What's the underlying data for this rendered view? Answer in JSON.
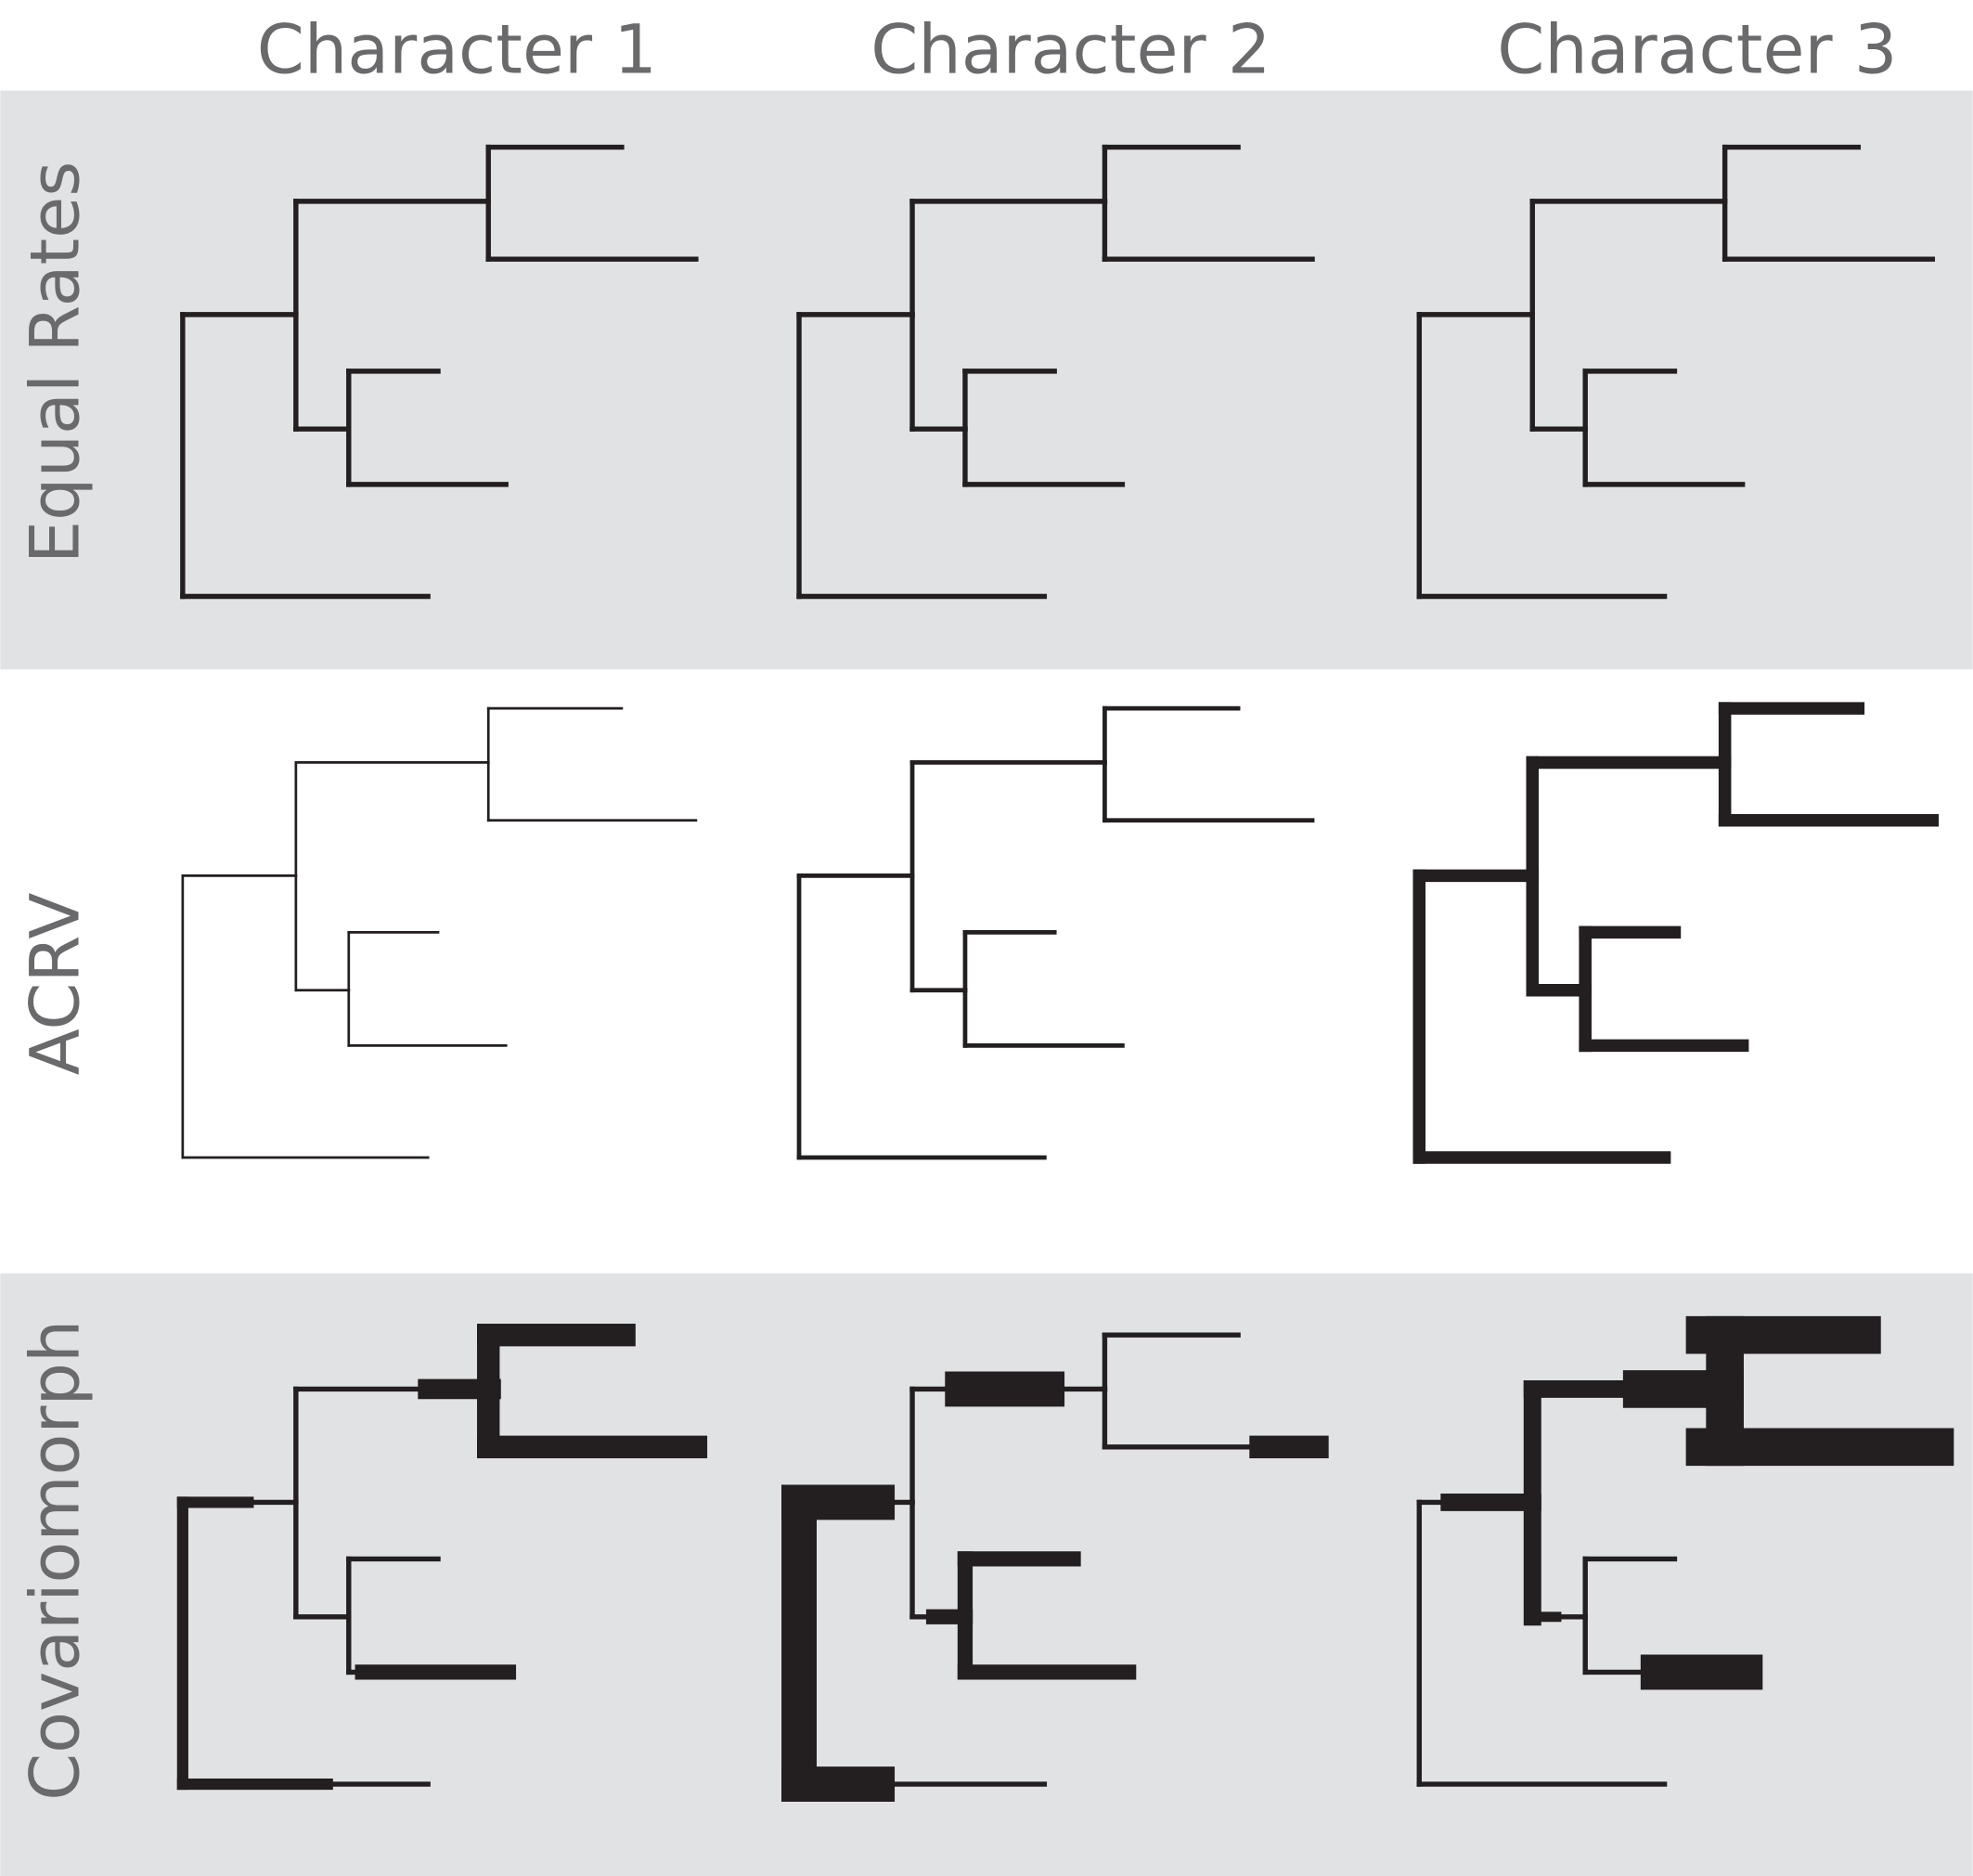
{
  "columns": [
    {
      "label": "Character 1"
    },
    {
      "label": "Character 2"
    },
    {
      "label": "Character 3"
    }
  ],
  "rows": [
    {
      "label": "Equal Rates",
      "shaded": true
    },
    {
      "label": "ACRV",
      "shaded": false
    },
    {
      "label": "Covariomorph",
      "shaded": true
    }
  ],
  "colors": {
    "band": "#e1e2e4",
    "branch": "#231f20",
    "label": "#6a6a6c",
    "background": "#ffffff"
  }
}
